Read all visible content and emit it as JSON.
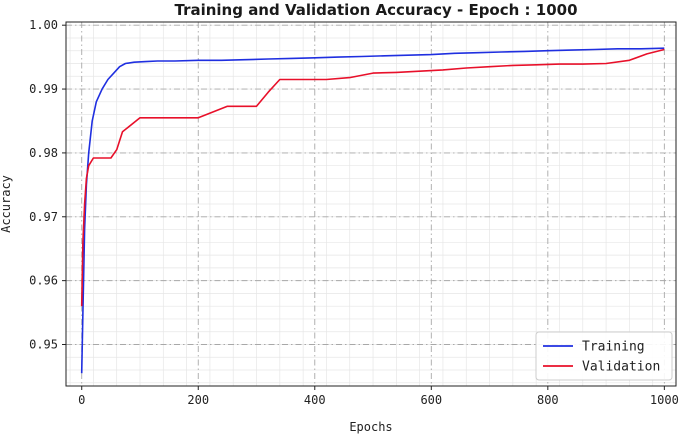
{
  "chart_data": {
    "type": "line",
    "title": "Training and Validation Accuracy - Epoch : 1000",
    "xlabel": "Epochs",
    "ylabel": "Accuracy",
    "xlim": [
      -27,
      1020
    ],
    "ylim": [
      0.9435,
      1.0005
    ],
    "xticks": [
      0,
      200,
      400,
      600,
      800,
      1000
    ],
    "yticks": [
      0.95,
      0.96,
      0.97,
      0.98,
      0.99,
      1.0
    ],
    "ytick_labels": [
      "0.95",
      "0.96",
      "0.97",
      "0.98",
      "0.99",
      "1.00"
    ],
    "grid": true,
    "legend_position": "lower-right",
    "series": [
      {
        "name": "Training",
        "color": "#1f2fe0",
        "x": [
          0,
          2,
          5,
          8,
          12,
          18,
          25,
          35,
          45,
          55,
          65,
          75,
          90,
          110,
          130,
          160,
          200,
          240,
          280,
          320,
          360,
          400,
          440,
          480,
          520,
          560,
          600,
          640,
          680,
          720,
          760,
          800,
          840,
          880,
          920,
          960,
          1000
        ],
        "values": [
          0.9455,
          0.955,
          0.968,
          0.975,
          0.98,
          0.985,
          0.988,
          0.99,
          0.9915,
          0.9925,
          0.9935,
          0.994,
          0.9942,
          0.9943,
          0.9944,
          0.9944,
          0.9945,
          0.9945,
          0.9946,
          0.9947,
          0.9948,
          0.9949,
          0.995,
          0.9951,
          0.9952,
          0.9953,
          0.9954,
          0.9956,
          0.9957,
          0.9958,
          0.9959,
          0.996,
          0.9961,
          0.9962,
          0.9963,
          0.9963,
          0.9964
        ]
      },
      {
        "name": "Validation",
        "color": "#e8102a",
        "x": [
          0,
          2,
          5,
          8,
          12,
          20,
          30,
          50,
          60,
          70,
          100,
          150,
          200,
          250,
          300,
          320,
          340,
          380,
          420,
          460,
          500,
          540,
          580,
          620,
          660,
          700,
          740,
          780,
          820,
          860,
          900,
          940,
          970,
          1000
        ],
        "values": [
          0.956,
          0.966,
          0.972,
          0.976,
          0.978,
          0.9792,
          0.9792,
          0.9792,
          0.9805,
          0.9833,
          0.9855,
          0.9855,
          0.9855,
          0.9873,
          0.9873,
          0.9895,
          0.9915,
          0.9915,
          0.9915,
          0.9918,
          0.9925,
          0.9926,
          0.9928,
          0.993,
          0.9933,
          0.9935,
          0.9937,
          0.9938,
          0.9939,
          0.9939,
          0.994,
          0.9945,
          0.9955,
          0.9962
        ]
      }
    ]
  }
}
